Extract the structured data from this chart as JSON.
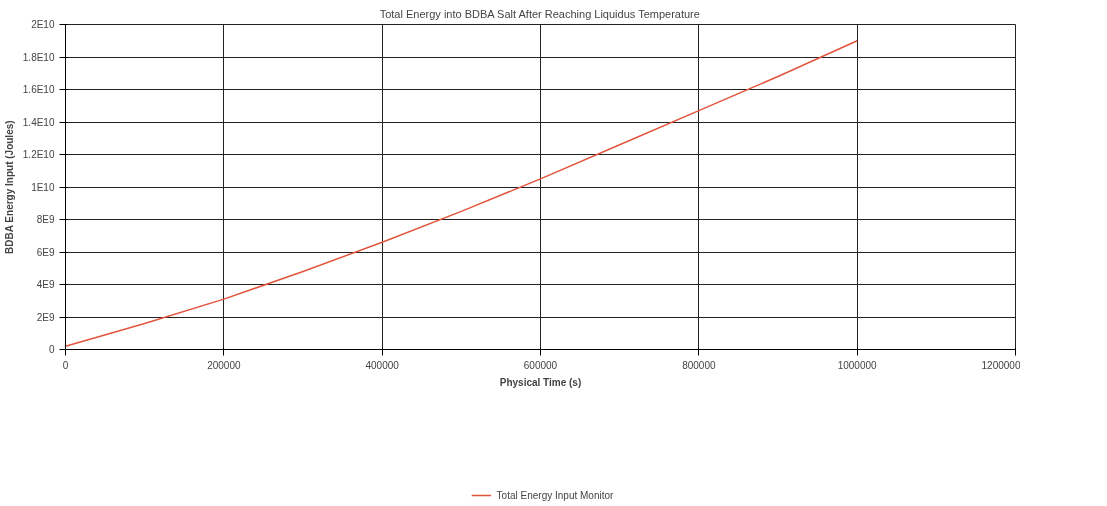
{
  "chart_data": {
    "type": "line",
    "title": "Total Energy into BDBA Salt After Reaching Liquidus Temperature",
    "xlabel": "Physical Time (s)",
    "ylabel": "BDBA Energy Input (Joules)",
    "x": [
      0,
      100000,
      200000,
      300000,
      400000,
      500000,
      600000,
      700000,
      800000,
      900000,
      1000000
    ],
    "series": [
      {
        "name": "Total Energy Input Monitor",
        "color": "#e2553d",
        "values": [
          200000000,
          1600000000,
          3100000000,
          4800000000,
          6600000000,
          8500000000,
          10500000000,
          12600000000,
          14700000000,
          16800000000,
          19000000000
        ]
      }
    ],
    "xlim": [
      0,
      1200000
    ],
    "ylim": [
      0,
      20000000000
    ],
    "xticks": [
      0,
      200000,
      400000,
      600000,
      800000,
      1000000,
      1200000
    ],
    "yticks": [
      0,
      {
        "value": 2000000000,
        "label": "2E9"
      },
      {
        "value": 4000000000,
        "label": "4E9"
      },
      {
        "value": 6000000000,
        "label": "6E9"
      },
      {
        "value": 8000000000,
        "label": "8E9"
      },
      {
        "value": 10000000000,
        "label": "1E10"
      },
      {
        "value": 12000000000,
        "label": "1.2E10"
      },
      {
        "value": 14000000000,
        "label": "1.4E10"
      },
      {
        "value": 16000000000,
        "label": "1.6E10"
      },
      {
        "value": 18000000000,
        "label": "1.8E10"
      },
      {
        "value": 20000000000,
        "label": "2E10"
      }
    ],
    "grid": true,
    "legend": "bottom",
    "marker": "none",
    "line_style": "solid"
  }
}
